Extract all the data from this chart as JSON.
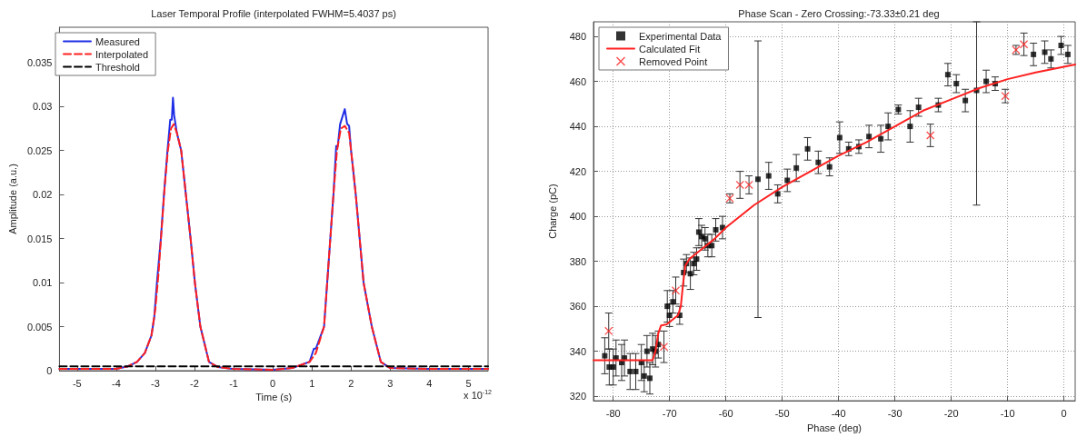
{
  "chart_data": [
    {
      "type": "line",
      "title": "Laser Temporal Profile (interpolated FWHM=5.4037 ps)",
      "xlabel": "Time (s)",
      "ylabel": "Amplitude (a.u.)",
      "annotations": [
        "x 10$^{-12}$"
      ],
      "xlim": [
        -5.45,
        5.5
      ],
      "xticks": [
        -5,
        -4,
        -3,
        -2,
        -1,
        0,
        1,
        2,
        3,
        4,
        5
      ],
      "ylim": [
        0,
        0.039
      ],
      "yticks": [
        0,
        0.005,
        0.01,
        0.015,
        0.02,
        0.025,
        0.03,
        0.035
      ],
      "grid": false,
      "legend": "top left",
      "marker": "none",
      "series": [
        {
          "name": "Measured",
          "color": "#1f2ee6",
          "line_style": "solid",
          "x": [
            -5.45,
            -4.5,
            -4,
            -3.7,
            -3.47,
            -3.27,
            -3.1,
            -3.03,
            -2.96,
            -2.86,
            -2.78,
            -2.69,
            -2.62,
            -2.58,
            -2.55,
            -2.52,
            -2.45,
            -2.34,
            -2.22,
            -2.1,
            -1.99,
            -1.85,
            -1.63,
            -1.4,
            -1,
            0,
            0.5,
            0.94,
            1.05,
            1.1,
            1.31,
            1.39,
            1.47,
            1.55,
            1.62,
            1.66,
            1.72,
            1.84,
            1.9,
            1.95,
            2,
            2.12,
            2.22,
            2.32,
            2.53,
            2.76,
            3,
            4,
            5.5
          ],
          "values": [
            0.0002,
            0.0002,
            0.0002,
            0.0005,
            0.001,
            0.002,
            0.004,
            0.006,
            0.01,
            0.015,
            0.02,
            0.025,
            0.0285,
            0.0285,
            0.031,
            0.029,
            0.027,
            0.025,
            0.02,
            0.015,
            0.01,
            0.005,
            0.001,
            0.0004,
            0.0002,
            0.0001,
            0.0003,
            0.001,
            0.0025,
            0.0025,
            0.005,
            0.01,
            0.015,
            0.02,
            0.0255,
            0.0255,
            0.028,
            0.0297,
            0.028,
            0.0278,
            0.025,
            0.02,
            0.015,
            0.01,
            0.005,
            0.001,
            0.0003,
            0.0002,
            0.0002
          ]
        },
        {
          "name": "Interpolated",
          "color": "#ff2020",
          "line_style": "dashed",
          "x": [
            -5.45,
            -4.5,
            -4,
            -3.7,
            -3.47,
            -3.27,
            -3.1,
            -3.0,
            -2.92,
            -2.84,
            -2.76,
            -2.68,
            -2.6,
            -2.53,
            -2.45,
            -2.34,
            -2.22,
            -2.1,
            -1.99,
            -1.85,
            -1.63,
            -1.4,
            -1,
            0,
            0.5,
            0.94,
            1.1,
            1.31,
            1.39,
            1.47,
            1.55,
            1.64,
            1.74,
            1.84,
            1.95,
            2.05,
            2.12,
            2.22,
            2.32,
            2.53,
            2.76,
            3,
            4,
            5.5
          ],
          "values": [
            0.0002,
            0.0002,
            0.0002,
            0.0005,
            0.001,
            0.002,
            0.004,
            0.007,
            0.011,
            0.016,
            0.021,
            0.025,
            0.0275,
            0.028,
            0.027,
            0.025,
            0.02,
            0.015,
            0.01,
            0.005,
            0.001,
            0.0004,
            0.0002,
            0.0001,
            0.0003,
            0.001,
            0.002,
            0.005,
            0.01,
            0.015,
            0.02,
            0.025,
            0.0275,
            0.0278,
            0.027,
            0.023,
            0.02,
            0.015,
            0.01,
            0.005,
            0.001,
            0.0003,
            0.0002,
            0.0002
          ]
        },
        {
          "name": "Threshold",
          "color": "#000000",
          "line_style": "dashed",
          "x": [
            -5.45,
            5.5
          ],
          "values": [
            0.0005,
            0.0005
          ]
        }
      ]
    },
    {
      "type": "scatter",
      "title": "Phase Scan - Zero Crossing:-73.33±0.21 deg",
      "xlabel": "Phase (deg)",
      "ylabel": "Charge (pC)",
      "xlim": [
        -83.5,
        2
      ],
      "xticks": [
        -80,
        -70,
        -60,
        -50,
        -40,
        -30,
        -20,
        -10,
        0
      ],
      "ylim": [
        318,
        486.5
      ],
      "yticks": [
        320,
        340,
        360,
        380,
        400,
        420,
        440,
        460,
        480
      ],
      "grid": true,
      "legend": "top left",
      "series": [
        {
          "name": "Experimental Data",
          "marker": "square",
          "color": "#000000",
          "x": [
            -81.5,
            -80.7,
            -80,
            -79.5,
            -78.5,
            -78,
            -77,
            -76,
            -75,
            -74.5,
            -74,
            -73.5,
            -73,
            -72.5,
            -72,
            -70.4,
            -70,
            -69.4,
            -68.2,
            -67.5,
            -67,
            -66.3,
            -65.7,
            -65.2,
            -64.8,
            -64.3,
            -63.7,
            -63.2,
            -62.5,
            -61.8,
            -60.6,
            -54.3,
            -52.4,
            -50.8,
            -49.1,
            -47.5,
            -45.5,
            -43.6,
            -41.6,
            -39.8,
            -38.2,
            -36.4,
            -34.6,
            -32.5,
            -31.2,
            -29.4,
            -27.3,
            -25.8,
            -22.3,
            -20.6,
            -19.1,
            -17.5,
            -15.5,
            -13.8,
            -12.2,
            -5.4,
            -3.4,
            -2.3,
            -0.5,
            0.7
          ],
          "values": [
            338,
            333,
            333,
            337,
            335,
            337,
            331,
            331,
            335,
            329,
            340,
            328,
            341,
            340,
            343,
            360,
            356,
            362,
            356,
            375,
            379,
            374.5,
            379,
            381,
            393,
            391,
            390,
            387,
            387,
            394,
            395,
            416.5,
            418,
            410,
            416,
            421.5,
            430,
            424,
            422,
            435,
            430,
            431,
            435.5,
            434.5,
            440,
            447.5,
            440,
            448.5,
            449.5,
            463,
            459,
            451.5,
            456,
            460,
            459,
            472,
            473,
            470,
            476,
            472
          ],
          "errors": [
            8,
            8,
            8,
            8,
            8,
            8,
            8,
            8,
            8,
            7,
            7,
            7,
            7,
            7,
            6,
            7,
            5,
            5,
            4,
            6,
            4,
            7,
            5,
            5,
            6,
            5,
            5,
            5,
            5,
            5,
            5,
            61.5,
            6,
            4,
            5,
            6,
            5,
            5,
            4,
            7,
            3,
            3,
            5,
            6,
            6,
            2,
            7,
            4,
            3,
            5,
            4,
            5,
            [
              405,
              486.5
            ],
            5,
            3,
            5,
            5,
            4,
            4,
            4
          ]
        },
        {
          "name": "Calculated Fit",
          "type": "line",
          "marker": "none",
          "color": "#ff2020",
          "line_style": "solid",
          "x": [
            -83.5,
            -73,
            -72.5,
            -72,
            -71.5,
            -70.5,
            -69.5,
            -68.5,
            -68,
            -67.6,
            -67.2,
            -66.5,
            -65,
            -62,
            -60,
            -55,
            -50,
            -45,
            -40,
            -35,
            -30,
            -25,
            -20,
            -15,
            -10,
            -5,
            0,
            2
          ],
          "values": [
            336,
            336,
            340,
            348,
            351.5,
            352,
            354,
            356,
            360,
            370,
            378,
            381,
            384,
            390,
            395,
            405,
            413,
            420,
            427,
            433,
            440,
            447,
            452,
            457,
            461,
            464,
            466.5,
            467.5
          ]
        },
        {
          "name": "Removed Point",
          "marker": "cross",
          "color": "#ff2020",
          "x": [
            -80.8,
            -71,
            -68.9,
            -59.3,
            -57.5,
            -55.9,
            -23.7,
            -10.4,
            -8.5,
            -7.1
          ],
          "values": [
            349,
            342,
            367,
            408,
            414,
            414,
            436,
            453.5,
            474,
            476.5
          ],
          "errors": [
            8,
            7,
            6,
            2,
            6,
            4,
            5,
            3,
            2,
            5
          ]
        }
      ]
    }
  ]
}
